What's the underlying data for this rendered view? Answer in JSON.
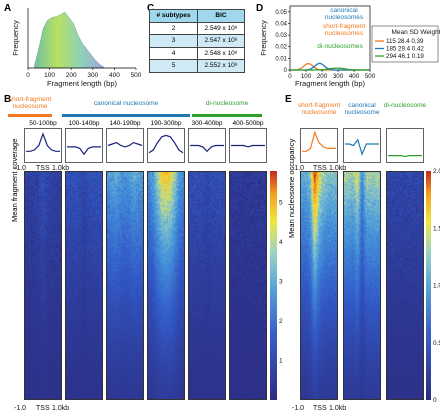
{
  "panels": {
    "a": "A",
    "b": "B",
    "c": "C",
    "d": "D",
    "e": "E"
  },
  "chart_data": [
    {
      "panel": "A",
      "type": "area",
      "xlabel": "Fragment length (bp)",
      "ylabel": "Frequency",
      "xticks": [
        "0",
        "100",
        "200",
        "300",
        "400",
        "500"
      ],
      "xlim": [
        0,
        500
      ],
      "gradient": [
        "#6fc0a0",
        "#b7e163",
        "#8fd2b6",
        "#9fa4e0"
      ],
      "x": [
        30,
        50,
        70,
        90,
        110,
        130,
        150,
        170,
        190,
        210,
        230,
        250,
        270,
        290,
        310,
        330,
        350
      ],
      "y": [
        0.05,
        0.35,
        0.7,
        0.85,
        0.9,
        0.92,
        0.95,
        1.0,
        0.9,
        0.8,
        0.6,
        0.45,
        0.35,
        0.25,
        0.15,
        0.07,
        0.02
      ]
    },
    {
      "panel": "C",
      "type": "table",
      "columns": [
        "# subtypes",
        "BIC"
      ],
      "rows": [
        [
          "2",
          "2.549 x 10⁸"
        ],
        [
          "3",
          "2.547 x 10⁸"
        ],
        [
          "4",
          "2.548 x 10⁸"
        ],
        [
          "5",
          "2.552 x 10⁸"
        ]
      ]
    },
    {
      "panel": "D",
      "type": "line",
      "xlabel": "Fragment length (bp)",
      "ylabel": "Frequency",
      "xticks": [
        "0",
        "100",
        "200",
        "300",
        "400",
        "500"
      ],
      "yticks": [
        "0",
        "0.01",
        "0.02",
        "0.03",
        "0.04",
        "0.05"
      ],
      "xlim": [
        0,
        500
      ],
      "ylim": [
        0,
        0.055
      ],
      "legend_header": "Mean SD Weight",
      "legend_position": "right",
      "series": [
        {
          "name": "short-fragment nucleosomes",
          "color": "#f47920",
          "mean": 115,
          "sd": 28.4,
          "weight": 0.39,
          "row": "115  28.4  0.39"
        },
        {
          "name": "canonical nucleosomes",
          "color": "#1f77b4",
          "mean": 185,
          "sd": 29.4,
          "weight": 0.42,
          "row": "185  29.4  0.42"
        },
        {
          "name": "di-nucleosomes",
          "color": "#2ca02c",
          "mean": 294,
          "sd": 46.1,
          "weight": 0.19,
          "row": "294  46.1  0.19"
        }
      ]
    },
    {
      "panel": "B",
      "type": "heatmap",
      "ylabel": "Mean fragment coverage",
      "groups": [
        {
          "label": "short-fragment\nnucleosome",
          "color": "#f47920"
        },
        {
          "label": "canonical nucleosome",
          "color": "#1f77b4"
        },
        {
          "label": "di-nucleosome",
          "color": "#2ca02c"
        }
      ],
      "columns": [
        "50-100bp",
        "100-140bp",
        "140-190bp",
        "190-300bp",
        "300-400bp",
        "400-500bp"
      ],
      "profiles": [
        [
          0.3,
          0.3,
          0.35,
          0.5,
          0.9,
          0.5,
          0.35,
          0.3,
          0.3
        ],
        [
          0.45,
          0.45,
          0.45,
          0.4,
          0.2,
          0.4,
          0.45,
          0.45,
          0.45
        ],
        [
          0.5,
          0.55,
          0.6,
          0.5,
          0.45,
          0.5,
          0.6,
          0.55,
          0.5
        ],
        [
          0.25,
          0.35,
          0.6,
          0.8,
          0.85,
          0.8,
          0.6,
          0.35,
          0.25
        ],
        [
          0.5,
          0.5,
          0.5,
          0.45,
          0.3,
          0.45,
          0.5,
          0.5,
          0.5
        ],
        [
          0.5,
          0.5,
          0.5,
          0.5,
          0.45,
          0.5,
          0.5,
          0.5,
          0.5
        ]
      ],
      "intensity": [
        0.9,
        1.5,
        3.4,
        4.2,
        1.3,
        0.4
      ],
      "xaxis": {
        "left": "-1.0",
        "mid": "TSS",
        "right": "1.0kb"
      },
      "colorbar": {
        "min": 0,
        "max": 5.8,
        "ticks": [
          "1",
          "2",
          "3",
          "4",
          "5"
        ]
      }
    },
    {
      "panel": "E",
      "type": "heatmap",
      "ylabel": "Mean nucleosome occupancy",
      "columns": [
        "short-fragment\nnucleosome",
        "canonical\nnucleosome",
        "di-nucleosome"
      ],
      "colors": [
        "#f47920",
        "#1f77b4",
        "#2ca02c"
      ],
      "profiles": [
        [
          0.3,
          0.3,
          0.4,
          0.95,
          0.6,
          0.45,
          0.4,
          0.4,
          0.4
        ],
        [
          0.55,
          0.55,
          0.5,
          0.7,
          0.2,
          0.55,
          0.55,
          0.55,
          0.55
        ],
        [
          0.15,
          0.15,
          0.15,
          0.15,
          0.12,
          0.15,
          0.15,
          0.15,
          0.15
        ]
      ],
      "intensity": [
        1.1,
        1.0,
        0.35
      ],
      "xaxis": {
        "left": "-1.0",
        "mid": "TSS",
        "right": "1.0kb"
      },
      "colorbar": {
        "min": 0,
        "max": 2.0,
        "ticks": [
          "0",
          "0.5",
          "1.0",
          "1.5",
          "2.0"
        ]
      }
    }
  ]
}
